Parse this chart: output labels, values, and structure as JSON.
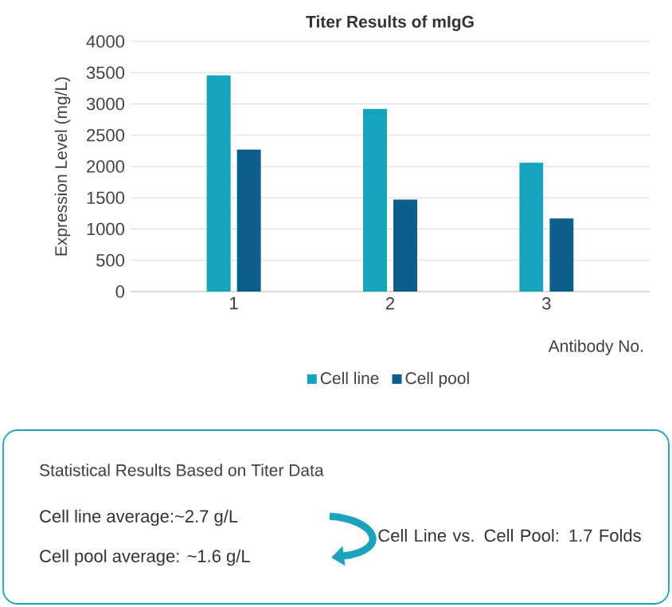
{
  "chart_data": [
    {
      "type": "bar",
      "title": "Titer Results of mIgG",
      "xlabel": "Antibody No.",
      "ylabel": "Expression Level (mg/L)",
      "categories": [
        "1",
        "2",
        "3"
      ],
      "series": [
        {
          "name": "Cell line",
          "color": "#14a5bd",
          "values": [
            3460,
            2920,
            2060
          ]
        },
        {
          "name": "Cell pool",
          "color": "#0e5e8c",
          "values": [
            2270,
            1470,
            1170
          ]
        }
      ],
      "ylim": [
        0,
        4000
      ],
      "yticks": [
        0,
        500,
        1000,
        1500,
        2000,
        2500,
        3000,
        3500,
        4000
      ],
      "grid": "y",
      "legend": "bottom"
    },
    {
      "type": "other",
      "title": "Statistical Results Based on Titer Data",
      "annotations": [
        "Cell line average:~2.7 g/L",
        "Cell pool average: ~1.6 g/L",
        "Cell Line vs. Cell Pool: 1.7 Folds"
      ]
    }
  ]
}
